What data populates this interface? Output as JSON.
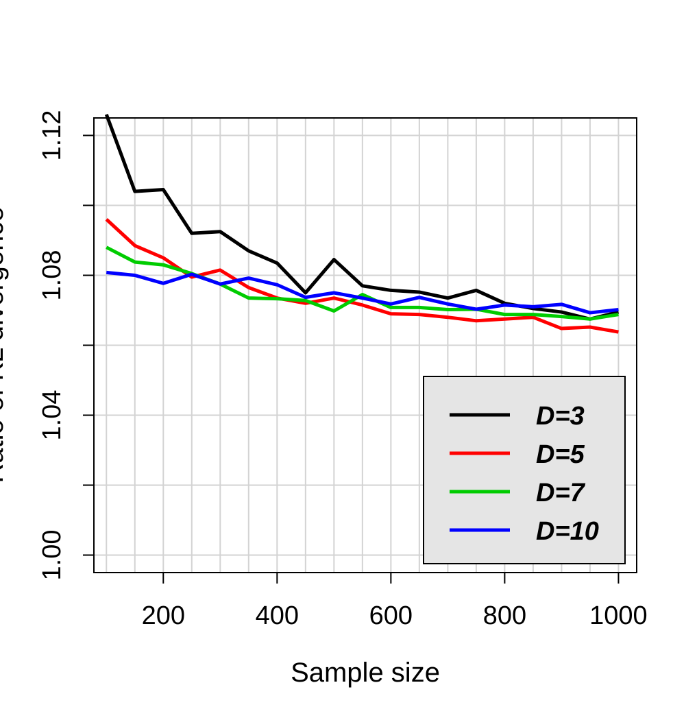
{
  "chart_data": {
    "type": "line",
    "title": "",
    "xlabel": "Sample size",
    "ylabel": "Ratio of KL divergence",
    "xlim": [
      78,
      1032
    ],
    "ylim": [
      0.995,
      1.125
    ],
    "xticks": [
      200,
      400,
      600,
      800,
      1000
    ],
    "yticks": [
      1.0,
      1.02,
      1.04,
      1.06,
      1.08,
      1.1,
      1.12
    ],
    "ytick_labels": [
      "1.00",
      "",
      "1.04",
      "",
      "1.08",
      "",
      "1.12"
    ],
    "grid": true,
    "grid_x": [
      100,
      150,
      200,
      250,
      300,
      350,
      400,
      450,
      500,
      550,
      600,
      650,
      700,
      750,
      800,
      850,
      900,
      950,
      1000
    ],
    "legend_position": "bottom-right",
    "x": [
      100,
      150,
      200,
      250,
      300,
      350,
      400,
      450,
      500,
      550,
      600,
      650,
      700,
      750,
      800,
      850,
      900,
      950,
      1000
    ],
    "series": [
      {
        "name": "D=3",
        "color": "#000000",
        "values": [
          1.126,
          1.104,
          1.1045,
          1.092,
          1.0925,
          1.087,
          1.0835,
          1.075,
          1.0845,
          1.077,
          1.0757,
          1.0752,
          1.0735,
          1.0757,
          1.072,
          1.0705,
          1.0695,
          1.0675,
          1.0695
        ]
      },
      {
        "name": "D=5",
        "color": "#ff0000",
        "values": [
          1.096,
          1.0885,
          1.085,
          1.0795,
          1.0815,
          1.0765,
          1.0735,
          1.072,
          1.0735,
          1.0715,
          1.069,
          1.0688,
          1.068,
          1.067,
          1.0675,
          1.068,
          1.0648,
          1.0652,
          1.0638
        ]
      },
      {
        "name": "D=7",
        "color": "#00cc00",
        "values": [
          1.088,
          1.0838,
          1.083,
          1.0805,
          1.0775,
          1.0735,
          1.0733,
          1.0728,
          1.0698,
          1.0745,
          1.0708,
          1.0708,
          1.0702,
          1.0703,
          1.0688,
          1.0688,
          1.0682,
          1.0675,
          1.0688
        ]
      },
      {
        "name": "D=10",
        "color": "#0000ff",
        "values": [
          1.0808,
          1.08,
          1.0777,
          1.0803,
          1.0775,
          1.0792,
          1.0773,
          1.0737,
          1.075,
          1.0735,
          1.0718,
          1.0737,
          1.0718,
          1.0703,
          1.0715,
          1.071,
          1.0717,
          1.0693,
          1.0702
        ]
      }
    ]
  }
}
